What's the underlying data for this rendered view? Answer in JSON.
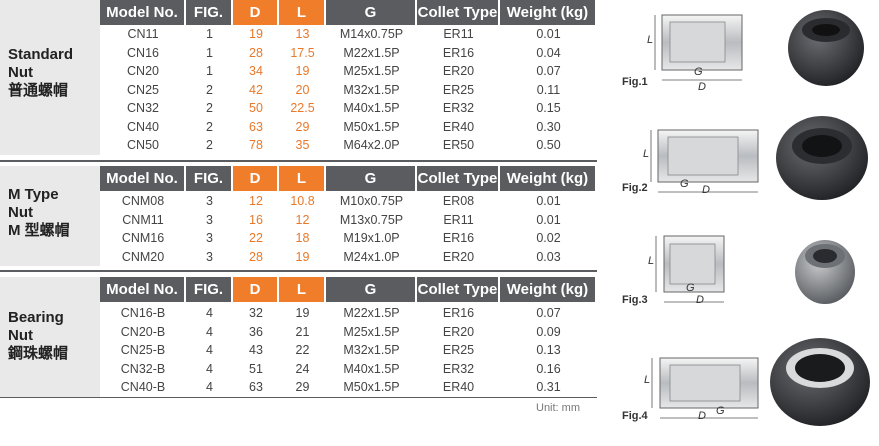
{
  "headers": [
    "Model No.",
    "FIG.",
    "D",
    "L",
    "G",
    "Collet Type",
    "Weight (kg)"
  ],
  "sections": [
    {
      "title": [
        "Standard",
        "Nut",
        "普通螺帽"
      ],
      "rows": [
        [
          "CN11",
          "1",
          "19",
          "13",
          "M14x0.75P",
          "ER11",
          "0.01"
        ],
        [
          "CN16",
          "1",
          "28",
          "17.5",
          "M22x1.5P",
          "ER16",
          "0.04"
        ],
        [
          "CN20",
          "1",
          "34",
          "19",
          "M25x1.5P",
          "ER20",
          "0.07"
        ],
        [
          "CN25",
          "2",
          "42",
          "20",
          "M32x1.5P",
          "ER25",
          "0.11"
        ],
        [
          "CN32",
          "2",
          "50",
          "22.5",
          "M40x1.5P",
          "ER32",
          "0.15"
        ],
        [
          "CN40",
          "2",
          "63",
          "29",
          "M50x1.5P",
          "ER40",
          "0.30"
        ],
        [
          "CN50",
          "2",
          "78",
          "35",
          "M64x2.0P",
          "ER50",
          "0.50"
        ]
      ]
    },
    {
      "title": [
        "M Type",
        "Nut",
        "M 型螺帽"
      ],
      "rows": [
        [
          "CNM08",
          "3",
          "12",
          "10.8",
          "M10x0.75P",
          "ER08",
          "0.01"
        ],
        [
          "CNM11",
          "3",
          "16",
          "12",
          "M13x0.75P",
          "ER11",
          "0.01"
        ],
        [
          "CNM16",
          "3",
          "22",
          "18",
          "M19x1.0P",
          "ER16",
          "0.02"
        ],
        [
          "CNM20",
          "3",
          "28",
          "19",
          "M24x1.0P",
          "ER20",
          "0.03"
        ]
      ]
    },
    {
      "title": [
        "Bearing",
        "Nut",
        "鋼珠螺帽"
      ],
      "rows": [
        [
          "CN16-B",
          "4",
          "32",
          "19",
          "M22x1.5P",
          "ER16",
          "0.07"
        ],
        [
          "CN20-B",
          "4",
          "36",
          "21",
          "M25x1.5P",
          "ER20",
          "0.09"
        ],
        [
          "CN25-B",
          "4",
          "43",
          "22",
          "M32x1.5P",
          "ER25",
          "0.13"
        ],
        [
          "CN32-B",
          "4",
          "51",
          "24",
          "M40x1.5P",
          "ER32",
          "0.16"
        ],
        [
          "CN40-B",
          "4",
          "63",
          "29",
          "M50x1.5P",
          "ER40",
          "0.31"
        ]
      ]
    }
  ],
  "unit_note": "Unit: mm",
  "figures": [
    {
      "label": "Fig.1",
      "dims": [
        "L",
        "G",
        "D"
      ]
    },
    {
      "label": "Fig.2",
      "dims": [
        "L",
        "G",
        "D"
      ]
    },
    {
      "label": "Fig.3",
      "dims": [
        "L",
        "G",
        "D"
      ]
    },
    {
      "label": "Fig.4",
      "dims": [
        "L",
        "D",
        "G"
      ]
    }
  ],
  "colors": {
    "header": "#5a5c60",
    "accent": "#f07d2a",
    "label_bg": "#e9e9ea",
    "dim_text": "#e8792b"
  }
}
